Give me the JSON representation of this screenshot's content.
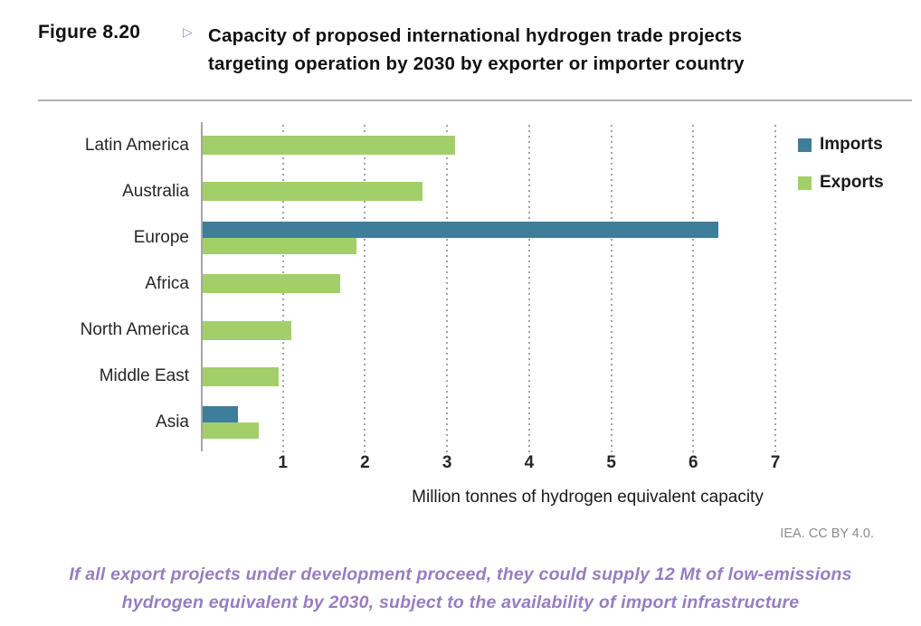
{
  "figure": {
    "label": "Figure 8.20",
    "marker": "▷",
    "title_line1": "Capacity of proposed international hydrogen trade projects",
    "title_line2": "targeting operation by 2030 by exporter or importer country"
  },
  "chart_data": {
    "type": "bar",
    "orientation": "horizontal",
    "title": "Capacity of proposed international hydrogen trade projects targeting operation by 2030 by exporter or importer country",
    "categories": [
      "Latin America",
      "Australia",
      "Europe",
      "Africa",
      "North America",
      "Middle East",
      "Asia"
    ],
    "series": [
      {
        "name": "Imports",
        "color": "#3e7e9b",
        "values": [
          0,
          0,
          6.3,
          0,
          0,
          0,
          0.45
        ]
      },
      {
        "name": "Exports",
        "color": "#a2cf69",
        "values": [
          3.1,
          2.7,
          1.9,
          1.7,
          1.1,
          0.95,
          0.7
        ]
      }
    ],
    "xlabel": "Million tonnes of hydrogen equivalent capacity",
    "xticks": [
      1,
      2,
      3,
      4,
      5,
      6,
      7
    ],
    "xlim": [
      0,
      8.3
    ],
    "grid": "dotted-vertical-gridlines",
    "legend_position": "top-right"
  },
  "attribution": "IEA. CC BY 4.0.",
  "caption": {
    "line1": "If all export projects under development proceed, they could supply 12 Mt of low-emissions",
    "line2": "hydrogen equivalent by 2030, subject to the availability of import infrastructure"
  },
  "colors": {
    "imports_blue": "#3e7e9b",
    "exports_green": "#a2cf69",
    "caption_purple": "#977dc1",
    "marker_purple": "#a08cc8",
    "axis_gray": "#a6a6a6"
  }
}
